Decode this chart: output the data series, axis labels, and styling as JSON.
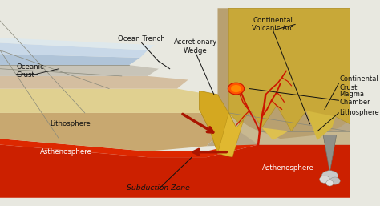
{
  "bg_color": "#e8e8e0",
  "labels": {
    "oceanic_crust": "Oceanic\nCrust",
    "lithosphere_left": "Lithosphere",
    "asthenosphere_left": "Asthenosphere",
    "ocean_trench": "Ocean Trench",
    "accretionary_wedge": "Accretionary\nWedge",
    "continental_volcanic_arc": "Continental\nVolcanic Arc",
    "continental_crust": "Continental\nCrust",
    "magma_chamber": "Magma\nChamber",
    "lithosphere_right": "Lithosphere",
    "asthenosphere_right": "Asthenosphere",
    "subduction_zone": "Subduction Zone"
  },
  "colors": {
    "ocean_water_top": "#c8d8e8",
    "ocean_water_bot": "#b0c4d8",
    "oceanic_crust_gray": "#c8c8c0",
    "oceanic_crust_tan": "#d8c8a0",
    "oceanic_crust_yellow": "#e8d898",
    "lithosphere_brown": "#c8a870",
    "asthenosphere_red": "#cc2000",
    "asthenosphere_dark": "#aa1800",
    "cont_crust_tan": "#c8a060",
    "cont_crust_gray": "#a89880",
    "mountain_gold": "#c8a030",
    "mountain_tan": "#c8b070",
    "wedge_gold": "#d4a820",
    "magma_red": "#cc1500",
    "magma_orange": "#ff5500",
    "volcano_gray": "#909090",
    "arrow_red": "#aa1500",
    "text_dark": "#111111",
    "line_dark": "#222222"
  }
}
